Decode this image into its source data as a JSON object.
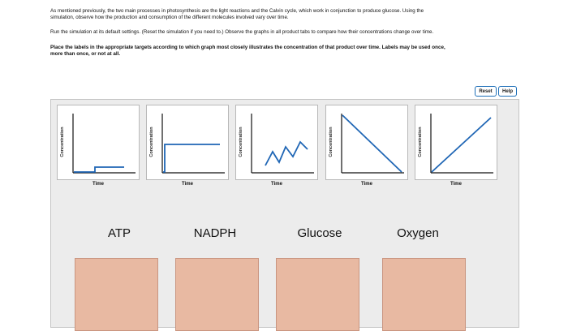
{
  "instructions": {
    "line1": "As mentioned previously, the two main processes in photosynthesis are the light reactions and the Calvin cycle, which work in conjunction to produce glucose. Using the",
    "line2": "simulation, observe how the production and consumption of the different molecules involved vary over time.",
    "line3": "Run the simulation at its default settings. (Reset the simulation if you need to.) Observe the graphs in all product tabs to compare how their concentrations change over time.",
    "line4": "Place the labels in the appropriate targets according to which graph most closely illustrates the concentration of that product over time. Labels may be used once,",
    "line5": "more than once, or not at all."
  },
  "buttons": {
    "reset": "Reset",
    "help": "Help"
  },
  "graphs": [
    {
      "id": "graph-1",
      "shape": "low-flat-then-step-up",
      "ylabel": "Concentration",
      "xlabel": "Time"
    },
    {
      "id": "graph-2",
      "shape": "step-up-then-flat",
      "ylabel": "Concentration",
      "xlabel": "Time"
    },
    {
      "id": "graph-3",
      "shape": "zigzag-rising",
      "ylabel": "Concentration",
      "xlabel": "Time"
    },
    {
      "id": "graph-4",
      "shape": "linear-decrease",
      "ylabel": "Concentration",
      "xlabel": "Time"
    },
    {
      "id": "graph-5",
      "shape": "linear-increase",
      "ylabel": "Concentration",
      "xlabel": "Time"
    }
  ],
  "labels": [
    "ATP",
    "NADPH",
    "Glucose",
    "Oxygen"
  ],
  "colors": {
    "curve": "#1f66b5",
    "target": "#e8b9a2",
    "button_border": "#1e6fb8",
    "panel": "#ececec"
  }
}
